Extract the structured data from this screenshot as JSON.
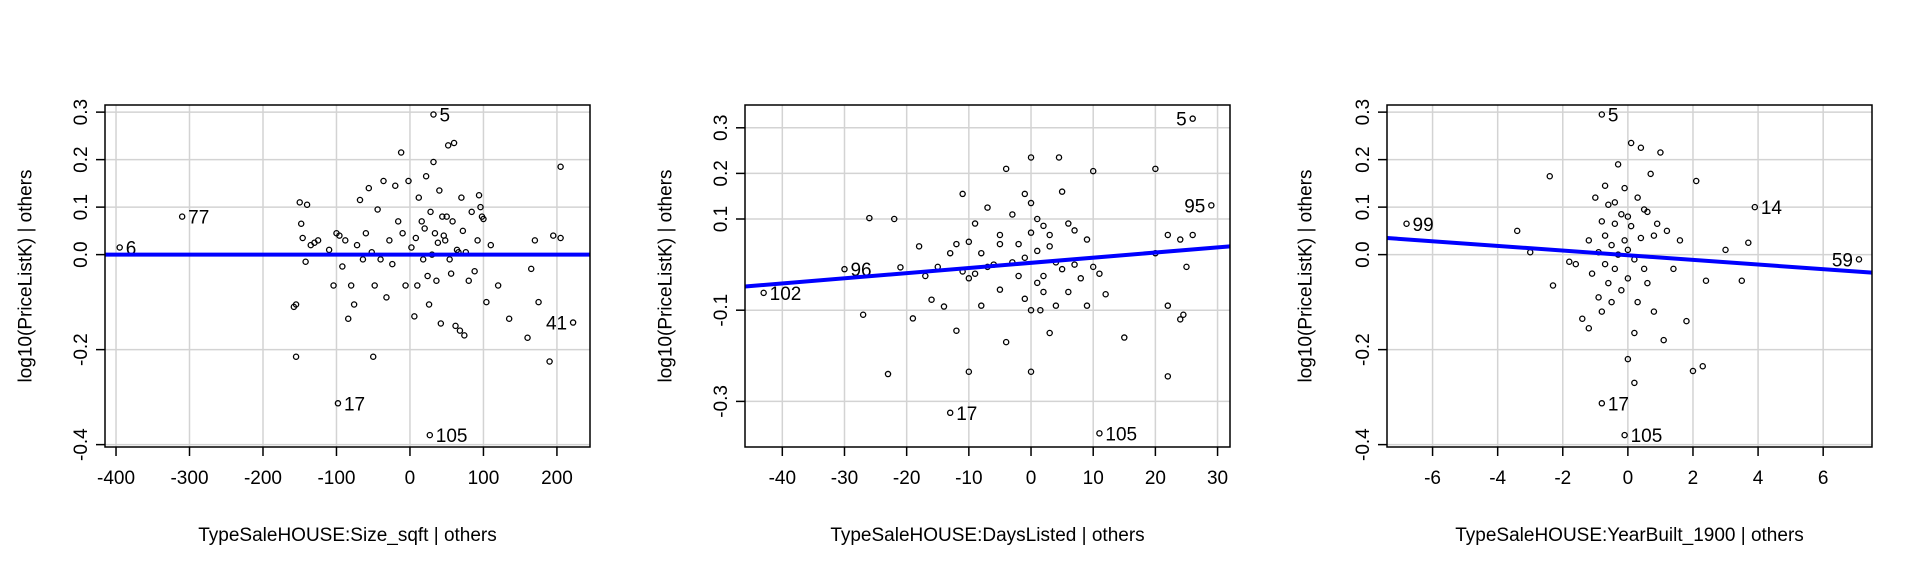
{
  "chart_data": [
    {
      "type": "scatter",
      "title": "",
      "xlabel": "TypeSaleHOUSE:Size_sqft | others",
      "ylabel": "log10(PriceListK)  | others",
      "xlim": [
        -415,
        245
      ],
      "ylim": [
        -0.405,
        0.315
      ],
      "xticks": [
        -400,
        -300,
        -200,
        -100,
        0,
        100,
        200
      ],
      "yticks": [
        -0.4,
        -0.2,
        0.0,
        0.1,
        0.2,
        0.3
      ],
      "ytick_labels": [
        "-0.4",
        "-0.2",
        "0.0",
        "0.1",
        "0.2",
        "0.3"
      ],
      "grid": true,
      "fit_line": {
        "color": "#0000ff",
        "x": [
          -415,
          245
        ],
        "y": [
          0.0,
          0.0
        ]
      },
      "labeled_points": [
        {
          "label": "5",
          "x": 32,
          "y": 0.295
        },
        {
          "label": "77",
          "x": -310,
          "y": 0.08
        },
        {
          "label": "6",
          "x": -395,
          "y": 0.015
        },
        {
          "label": "41",
          "x": 222,
          "y": -0.143
        },
        {
          "label": "17",
          "x": -98,
          "y": -0.313
        },
        {
          "label": "105",
          "x": 27,
          "y": -0.38
        }
      ],
      "points": [
        {
          "x": -150,
          "y": 0.11
        },
        {
          "x": -140,
          "y": 0.105
        },
        {
          "x": -135,
          "y": 0.02
        },
        {
          "x": -130,
          "y": 0.025
        },
        {
          "x": -148,
          "y": 0.065
        },
        {
          "x": -146,
          "y": 0.035
        },
        {
          "x": -142,
          "y": -0.015
        },
        {
          "x": -125,
          "y": 0.03
        },
        {
          "x": -155,
          "y": -0.105
        },
        {
          "x": -158,
          "y": -0.11
        },
        {
          "x": -155,
          "y": -0.215
        },
        {
          "x": -110,
          "y": 0.01
        },
        {
          "x": -104,
          "y": -0.065
        },
        {
          "x": -100,
          "y": 0.045
        },
        {
          "x": -96,
          "y": 0.04
        },
        {
          "x": -92,
          "y": -0.025
        },
        {
          "x": -88,
          "y": 0.03
        },
        {
          "x": -84,
          "y": -0.135
        },
        {
          "x": -80,
          "y": -0.065
        },
        {
          "x": -76,
          "y": -0.105
        },
        {
          "x": -72,
          "y": 0.02
        },
        {
          "x": -68,
          "y": 0.115
        },
        {
          "x": -64,
          "y": -0.01
        },
        {
          "x": -60,
          "y": 0.045
        },
        {
          "x": -56,
          "y": 0.14
        },
        {
          "x": -52,
          "y": 0.005
        },
        {
          "x": -50,
          "y": -0.215
        },
        {
          "x": -48,
          "y": -0.065
        },
        {
          "x": -44,
          "y": 0.095
        },
        {
          "x": -40,
          "y": -0.01
        },
        {
          "x": -36,
          "y": 0.155
        },
        {
          "x": -32,
          "y": -0.09
        },
        {
          "x": -28,
          "y": 0.03
        },
        {
          "x": -24,
          "y": -0.02
        },
        {
          "x": -20,
          "y": 0.145
        },
        {
          "x": -16,
          "y": 0.07
        },
        {
          "x": -12,
          "y": 0.215
        },
        {
          "x": -10,
          "y": 0.045
        },
        {
          "x": -6,
          "y": -0.065
        },
        {
          "x": -2,
          "y": 0.155
        },
        {
          "x": 2,
          "y": 0.015
        },
        {
          "x": 6,
          "y": -0.13
        },
        {
          "x": 8,
          "y": 0.035
        },
        {
          "x": 10,
          "y": -0.065
        },
        {
          "x": 12,
          "y": 0.12
        },
        {
          "x": 16,
          "y": 0.07
        },
        {
          "x": 18,
          "y": -0.01
        },
        {
          "x": 20,
          "y": 0.055
        },
        {
          "x": 22,
          "y": 0.165
        },
        {
          "x": 24,
          "y": -0.045
        },
        {
          "x": 26,
          "y": -0.105
        },
        {
          "x": 28,
          "y": 0.09
        },
        {
          "x": 30,
          "y": 0.0
        },
        {
          "x": 32,
          "y": 0.195
        },
        {
          "x": 34,
          "y": 0.045
        },
        {
          "x": 36,
          "y": -0.055
        },
        {
          "x": 38,
          "y": 0.025
        },
        {
          "x": 40,
          "y": 0.135
        },
        {
          "x": 42,
          "y": -0.145
        },
        {
          "x": 44,
          "y": 0.08
        },
        {
          "x": 46,
          "y": 0.04
        },
        {
          "x": 48,
          "y": 0.03
        },
        {
          "x": 50,
          "y": 0.08
        },
        {
          "x": 52,
          "y": 0.23
        },
        {
          "x": 54,
          "y": -0.01
        },
        {
          "x": 56,
          "y": -0.04
        },
        {
          "x": 58,
          "y": 0.07
        },
        {
          "x": 60,
          "y": 0.235
        },
        {
          "x": 62,
          "y": -0.15
        },
        {
          "x": 64,
          "y": 0.01
        },
        {
          "x": 66,
          "y": 0.005
        },
        {
          "x": 68,
          "y": -0.16
        },
        {
          "x": 70,
          "y": 0.12
        },
        {
          "x": 72,
          "y": 0.05
        },
        {
          "x": 74,
          "y": -0.17
        },
        {
          "x": 76,
          "y": 0.005
        },
        {
          "x": 80,
          "y": -0.055
        },
        {
          "x": 84,
          "y": 0.09
        },
        {
          "x": 88,
          "y": -0.035
        },
        {
          "x": 92,
          "y": 0.03
        },
        {
          "x": 94,
          "y": 0.125
        },
        {
          "x": 96,
          "y": 0.1
        },
        {
          "x": 98,
          "y": 0.08
        },
        {
          "x": 100,
          "y": 0.075
        },
        {
          "x": 104,
          "y": -0.1
        },
        {
          "x": 110,
          "y": 0.02
        },
        {
          "x": 120,
          "y": -0.065
        },
        {
          "x": 135,
          "y": -0.135
        },
        {
          "x": 160,
          "y": -0.175
        },
        {
          "x": 165,
          "y": -0.03
        },
        {
          "x": 170,
          "y": 0.03
        },
        {
          "x": 175,
          "y": -0.1
        },
        {
          "x": 190,
          "y": -0.225
        },
        {
          "x": 195,
          "y": 0.04
        },
        {
          "x": 205,
          "y": 0.035
        },
        {
          "x": 205,
          "y": 0.185
        }
      ]
    },
    {
      "type": "scatter",
      "title": "",
      "xlabel": "TypeSaleHOUSE:DaysListed | others",
      "ylabel": "log10(PriceListK)  | others",
      "xlim": [
        -46,
        32
      ],
      "ylim": [
        -0.4,
        0.35
      ],
      "xticks": [
        -40,
        -30,
        -20,
        -10,
        0,
        10,
        20,
        30
      ],
      "yticks": [
        -0.3,
        -0.1,
        0.1,
        0.2,
        0.3
      ],
      "ytick_labels": [
        "-0.3",
        "-0.1",
        "0.1",
        "0.2",
        "0.3"
      ],
      "grid": true,
      "fit_line": {
        "color": "#0000ff",
        "x": [
          -46,
          32
        ],
        "y": [
          -0.048,
          0.04
        ]
      },
      "labeled_points": [
        {
          "label": "5",
          "x": 26,
          "y": 0.32
        },
        {
          "label": "95",
          "x": 29,
          "y": 0.13
        },
        {
          "label": "96",
          "x": -30,
          "y": -0.01
        },
        {
          "label": "102",
          "x": -43,
          "y": -0.062
        },
        {
          "label": "17",
          "x": -13,
          "y": -0.325
        },
        {
          "label": "105",
          "x": 11,
          "y": -0.37
        }
      ],
      "points": [
        {
          "x": -27,
          "y": -0.11
        },
        {
          "x": -26,
          "y": 0.102
        },
        {
          "x": -22,
          "y": 0.1
        },
        {
          "x": -21,
          "y": -0.006
        },
        {
          "x": -19,
          "y": -0.118
        },
        {
          "x": -18,
          "y": 0.04
        },
        {
          "x": -17,
          "y": -0.025
        },
        {
          "x": -16,
          "y": -0.077
        },
        {
          "x": -15,
          "y": -0.005
        },
        {
          "x": -14,
          "y": -0.092
        },
        {
          "x": -13,
          "y": 0.025
        },
        {
          "x": -12,
          "y": 0.045
        },
        {
          "x": -12,
          "y": -0.145
        },
        {
          "x": -11,
          "y": 0.155
        },
        {
          "x": -11,
          "y": -0.015
        },
        {
          "x": -10,
          "y": 0.05
        },
        {
          "x": -10,
          "y": -0.03
        },
        {
          "x": -9,
          "y": -0.02
        },
        {
          "x": -9,
          "y": 0.09
        },
        {
          "x": -8,
          "y": 0.025
        },
        {
          "x": -8,
          "y": -0.09
        },
        {
          "x": -7,
          "y": -0.005
        },
        {
          "x": -7,
          "y": 0.125
        },
        {
          "x": -6,
          "y": 0.0
        },
        {
          "x": -5,
          "y": 0.065
        },
        {
          "x": -5,
          "y": -0.055
        },
        {
          "x": -4,
          "y": 0.21
        },
        {
          "x": -4,
          "y": -0.17
        },
        {
          "x": -3,
          "y": 0.11
        },
        {
          "x": -3,
          "y": 0.005
        },
        {
          "x": -2,
          "y": -0.025
        },
        {
          "x": -2,
          "y": 0.045
        },
        {
          "x": -1,
          "y": 0.155
        },
        {
          "x": -1,
          "y": -0.075
        },
        {
          "x": -1,
          "y": 0.015
        },
        {
          "x": 0,
          "y": 0.235
        },
        {
          "x": 0,
          "y": 0.135
        },
        {
          "x": 0,
          "y": 0.07
        },
        {
          "x": 0,
          "y": -0.1
        },
        {
          "x": 0,
          "y": -0.235
        },
        {
          "x": 1,
          "y": 0.03
        },
        {
          "x": 1,
          "y": -0.04
        },
        {
          "x": 1,
          "y": 0.1
        },
        {
          "x": 1.5,
          "y": -0.1
        },
        {
          "x": 2,
          "y": 0.085
        },
        {
          "x": 2,
          "y": -0.025
        },
        {
          "x": 2,
          "y": -0.06
        },
        {
          "x": 3,
          "y": 0.04
        },
        {
          "x": 3,
          "y": -0.15
        },
        {
          "x": 4,
          "y": 0.005
        },
        {
          "x": 4,
          "y": -0.09
        },
        {
          "x": 4.5,
          "y": 0.235
        },
        {
          "x": 5,
          "y": 0.16
        },
        {
          "x": 5,
          "y": -0.01
        },
        {
          "x": 6,
          "y": 0.09
        },
        {
          "x": 6,
          "y": -0.06
        },
        {
          "x": 7,
          "y": 0.075
        },
        {
          "x": 7,
          "y": 0.0
        },
        {
          "x": 8,
          "y": -0.03
        },
        {
          "x": 9,
          "y": 0.055
        },
        {
          "x": 9,
          "y": -0.09
        },
        {
          "x": 10,
          "y": 0.205
        },
        {
          "x": 10,
          "y": -0.005
        },
        {
          "x": 11,
          "y": -0.02
        },
        {
          "x": 12,
          "y": -0.065
        },
        {
          "x": 15,
          "y": -0.16
        },
        {
          "x": 20,
          "y": 0.025
        },
        {
          "x": 20,
          "y": 0.21
        },
        {
          "x": 22,
          "y": 0.065
        },
        {
          "x": 22,
          "y": -0.09
        },
        {
          "x": 22,
          "y": -0.245
        },
        {
          "x": 24,
          "y": 0.055
        },
        {
          "x": 24,
          "y": -0.12
        },
        {
          "x": 24.5,
          "y": -0.11
        },
        {
          "x": 25,
          "y": -0.005
        },
        {
          "x": 26,
          "y": 0.065
        },
        {
          "x": -23,
          "y": -0.24
        },
        {
          "x": -10,
          "y": -0.235
        },
        {
          "x": -5,
          "y": 0.045
        },
        {
          "x": 3,
          "y": 0.065
        }
      ]
    },
    {
      "type": "scatter",
      "title": "",
      "xlabel": "TypeSaleHOUSE:YearBuilt_1900 | others",
      "ylabel": "log10(PriceListK)  | others",
      "xlim": [
        -7.4,
        7.5
      ],
      "ylim": [
        -0.405,
        0.315
      ],
      "xticks": [
        -6,
        -4,
        -2,
        0,
        2,
        4,
        6
      ],
      "yticks": [
        -0.4,
        -0.2,
        0.0,
        0.1,
        0.2,
        0.3
      ],
      "ytick_labels": [
        "-0.4",
        "-0.2",
        "0.0",
        "0.1",
        "0.2",
        "0.3"
      ],
      "grid": true,
      "fit_line": {
        "color": "#0000ff",
        "x": [
          -7.4,
          7.5
        ],
        "y": [
          0.035,
          -0.038
        ]
      },
      "labeled_points": [
        {
          "label": "5",
          "x": -0.8,
          "y": 0.295
        },
        {
          "label": "99",
          "x": -6.8,
          "y": 0.065
        },
        {
          "label": "14",
          "x": 3.9,
          "y": 0.1
        },
        {
          "label": "59",
          "x": 7.1,
          "y": -0.01
        },
        {
          "label": "17",
          "x": -0.8,
          "y": -0.313
        },
        {
          "label": "105",
          "x": -0.1,
          "y": -0.38
        }
      ],
      "points": [
        {
          "x": -3.4,
          "y": 0.05
        },
        {
          "x": -3.0,
          "y": 0.005
        },
        {
          "x": -2.4,
          "y": 0.165
        },
        {
          "x": -2.3,
          "y": -0.065
        },
        {
          "x": -1.8,
          "y": -0.015
        },
        {
          "x": -1.6,
          "y": -0.02
        },
        {
          "x": -1.4,
          "y": -0.135
        },
        {
          "x": -1.2,
          "y": 0.03
        },
        {
          "x": -1.1,
          "y": -0.04
        },
        {
          "x": -1.0,
          "y": 0.12
        },
        {
          "x": -0.9,
          "y": -0.09
        },
        {
          "x": -0.9,
          "y": 0.005
        },
        {
          "x": -0.8,
          "y": 0.07
        },
        {
          "x": -0.8,
          "y": -0.12
        },
        {
          "x": -0.7,
          "y": 0.145
        },
        {
          "x": -0.7,
          "y": 0.04
        },
        {
          "x": -0.6,
          "y": -0.06
        },
        {
          "x": -0.6,
          "y": 0.105
        },
        {
          "x": -0.5,
          "y": 0.02
        },
        {
          "x": -0.5,
          "y": -0.1
        },
        {
          "x": -0.4,
          "y": 0.065
        },
        {
          "x": -0.4,
          "y": -0.03
        },
        {
          "x": -0.3,
          "y": 0.19
        },
        {
          "x": -0.3,
          "y": 0.0
        },
        {
          "x": -0.2,
          "y": 0.085
        },
        {
          "x": -0.2,
          "y": -0.075
        },
        {
          "x": -0.1,
          "y": 0.03
        },
        {
          "x": -0.1,
          "y": 0.14
        },
        {
          "x": 0.0,
          "y": -0.05
        },
        {
          "x": 0.0,
          "y": 0.01
        },
        {
          "x": 0.0,
          "y": -0.22
        },
        {
          "x": 0.1,
          "y": 0.235
        },
        {
          "x": 0.1,
          "y": 0.06
        },
        {
          "x": 0.2,
          "y": -0.01
        },
        {
          "x": 0.2,
          "y": -0.165
        },
        {
          "x": 0.2,
          "y": -0.27
        },
        {
          "x": 0.3,
          "y": 0.12
        },
        {
          "x": 0.3,
          "y": -0.1
        },
        {
          "x": 0.4,
          "y": 0.225
        },
        {
          "x": 0.4,
          "y": 0.035
        },
        {
          "x": 0.5,
          "y": -0.03
        },
        {
          "x": 0.6,
          "y": 0.09
        },
        {
          "x": 0.6,
          "y": -0.06
        },
        {
          "x": 0.7,
          "y": 0.17
        },
        {
          "x": 0.8,
          "y": 0.04
        },
        {
          "x": 0.8,
          "y": -0.12
        },
        {
          "x": 0.9,
          "y": 0.065
        },
        {
          "x": 1.0,
          "y": 0.215
        },
        {
          "x": 1.1,
          "y": -0.18
        },
        {
          "x": 1.2,
          "y": 0.05
        },
        {
          "x": 1.4,
          "y": -0.03
        },
        {
          "x": 1.6,
          "y": 0.03
        },
        {
          "x": 1.8,
          "y": -0.14
        },
        {
          "x": 2.0,
          "y": -0.245
        },
        {
          "x": 2.1,
          "y": 0.155
        },
        {
          "x": 2.3,
          "y": -0.235
        },
        {
          "x": 2.4,
          "y": -0.055
        },
        {
          "x": 3.0,
          "y": 0.01
        },
        {
          "x": 3.5,
          "y": -0.055
        },
        {
          "x": 3.7,
          "y": 0.025
        },
        {
          "x": -0.7,
          "y": -0.02
        },
        {
          "x": -1.2,
          "y": -0.155
        },
        {
          "x": 0.5,
          "y": 0.095
        },
        {
          "x": -0.4,
          "y": 0.11
        },
        {
          "x": 0.0,
          "y": 0.08
        }
      ]
    }
  ]
}
